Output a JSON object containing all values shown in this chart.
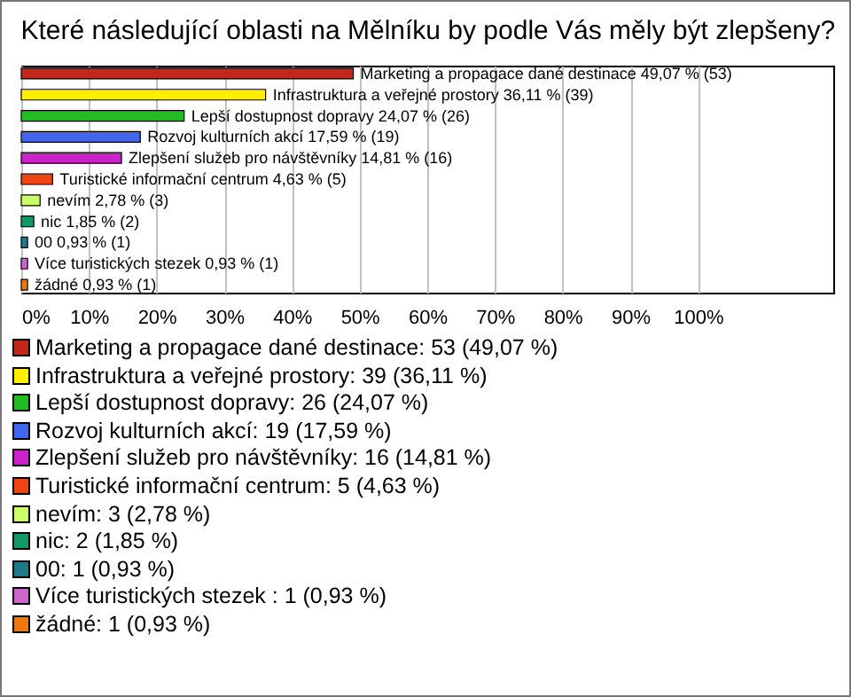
{
  "chart_data": {
    "type": "bar",
    "orientation": "horizontal",
    "title": "Které následující oblasti na Mělníku by podle Vás měly být zlepšeny?",
    "categories": [
      "Marketing a propagace dané destinace",
      "Infrastruktura a veřejné prostory",
      "Lepší dostupnost dopravy",
      "Rozvoj kulturních akcí",
      "Zlepšení služeb pro návštěvníky",
      "Turistické informační centrum",
      "nevím",
      "nic",
      "00",
      "Více turistických stezek ",
      "žádné"
    ],
    "values": [
      49.07,
      36.11,
      24.07,
      17.59,
      14.81,
      4.63,
      2.78,
      1.85,
      0.93,
      0.93,
      0.93
    ],
    "value_labels": [
      "49,07 % (53)",
      "36,11 % (39)",
      "24,07 % (26)",
      "17,59 % (19)",
      "14,81 % (16)",
      "4,63 % (5)",
      "2,78 % (3)",
      "1,85 % (2)",
      "0,93 % (1)",
      "0,93 % (1)",
      "0,93 % (1)"
    ],
    "colors": [
      "#c0281c",
      "#ffee00",
      "#22bb22",
      "#4466ee",
      "#cc22cc",
      "#ee4411",
      "#ccff66",
      "#119966",
      "#227788",
      "#cc66cc",
      "#ee7711"
    ],
    "annotations": [
      "Marketing a propagace dané destinace: 53 (49,07 %)",
      "Infrastruktura a veřejné prostory: 39 (36,11 %)",
      "Lepší dostupnost dopravy: 26 (24,07 %)",
      "Rozvoj kulturních akcí: 19 (17,59 %)",
      "Zlepšení služeb pro návštěvníky: 16 (14,81 %)",
      "Turistické informační centrum: 5 (4,63 %)",
      "nevím: 3 (2,78 %)",
      "nic: 2 (1,85 %)",
      "00: 1 (0,93 %)",
      "Více turistických stezek : 1 (0,93 %)",
      "žádné: 1 (0,93 %)"
    ],
    "xlim": [
      0,
      120
    ],
    "xticks": [
      {
        "value": 0,
        "label": "0%"
      },
      {
        "value": 10,
        "label": "10%"
      },
      {
        "value": 20,
        "label": "20%"
      },
      {
        "value": 30,
        "label": "30%"
      },
      {
        "value": 40,
        "label": "40%"
      },
      {
        "value": 50,
        "label": "50%"
      },
      {
        "value": 60,
        "label": "60%"
      },
      {
        "value": 70,
        "label": "70%"
      },
      {
        "value": 80,
        "label": "80%"
      },
      {
        "value": 90,
        "label": "90%"
      },
      {
        "value": 100,
        "label": "100%"
      }
    ],
    "grid": "x",
    "tick_labels": "x"
  }
}
